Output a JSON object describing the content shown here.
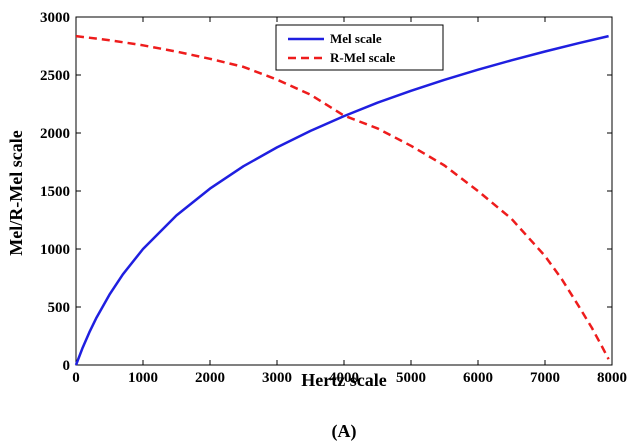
{
  "chart_data": {
    "type": "line",
    "xlabel": "Hertz scale",
    "ylabel": "Mel/R-Mel scale",
    "xlim": [
      0,
      8000
    ],
    "ylim": [
      0,
      3000
    ],
    "xticks": [
      0,
      1000,
      2000,
      3000,
      4000,
      5000,
      6000,
      7000,
      8000
    ],
    "yticks": [
      0,
      500,
      1000,
      1500,
      2000,
      2500,
      3000
    ],
    "grid": false,
    "legend_position": "top-center",
    "caption": "(A)",
    "series": [
      {
        "name": "Mel scale",
        "color": "#1f1fe0",
        "line_style": "solid",
        "x": [
          0,
          100,
          200,
          300,
          500,
          700,
          1000,
          1500,
          2000,
          2500,
          3000,
          3500,
          4000,
          4500,
          5000,
          5500,
          6000,
          6500,
          7000,
          7500,
          7950
        ],
        "y": [
          0,
          150,
          283,
          402,
          607,
          782,
          1000,
          1290,
          1521,
          1714,
          1876,
          2018,
          2146,
          2261,
          2364,
          2459,
          2546,
          2627,
          2703,
          2774,
          2835
        ]
      },
      {
        "name": "R-Mel scale",
        "color": "#ee1c1c",
        "line_style": "dashed",
        "x": [
          0,
          500,
          1000,
          1500,
          2000,
          2500,
          3000,
          3500,
          4000,
          4500,
          5000,
          5500,
          6000,
          6500,
          7000,
          7250,
          7500,
          7700,
          7850,
          7950
        ],
        "y": [
          2835,
          2800,
          2756,
          2702,
          2640,
          2570,
          2460,
          2330,
          2150,
          2040,
          1890,
          1720,
          1500,
          1260,
          940,
          740,
          510,
          320,
          160,
          50
        ]
      }
    ]
  }
}
